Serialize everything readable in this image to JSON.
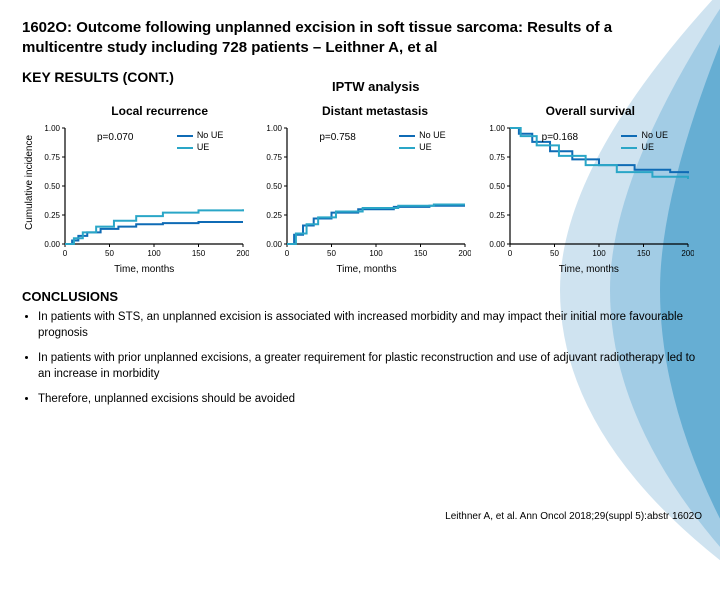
{
  "title": "1602O: Outcome following unplanned excision in soft tissue sarcoma: Results of a multicentre study including 728 patients – Leithner A, et al",
  "key_results": "KEY RESULTS (CONT.)",
  "iptw": "IPTW analysis",
  "yaxis": "Cumulative incidence",
  "xaxis": "Time, months",
  "conclusions_h": "CONCLUSIONS",
  "bullets": [
    "In patients with STS, an unplanned excision is associated with increased morbidity and may impact their initial more favourable prognosis",
    "In patients with prior unplanned excisions, a greater requirement for plastic reconstruction and use of adjuvant radiotherapy led to an increase in morbidity",
    "Therefore, unplanned excisions should be avoided"
  ],
  "citation": "Leithner A, et al. Ann Oncol 2018;29(suppl 5):abstr 1602O",
  "colors": {
    "noUE": "#0f6bb5",
    "UE": "#2aa6c7",
    "axis": "#000000",
    "swoosh1": "#cfe3f0",
    "swoosh2": "#9cc9e3",
    "swoosh3": "#5ca8d0"
  },
  "legend": {
    "noUE": "No UE",
    "UE": "UE"
  },
  "axis": {
    "yticks": [
      0.0,
      0.25,
      0.5,
      0.75,
      1.0
    ],
    "ylim": [
      0,
      1
    ],
    "xticks": [
      0,
      50,
      100,
      150,
      200
    ],
    "xlim": [
      0,
      200
    ],
    "tick_fontsize": 8
  },
  "charts": [
    {
      "title": "Local recurrence",
      "p": "p=0.070",
      "noUE": [
        [
          0,
          0.0
        ],
        [
          8,
          0.03
        ],
        [
          15,
          0.07
        ],
        [
          25,
          0.1
        ],
        [
          40,
          0.13
        ],
        [
          60,
          0.15
        ],
        [
          80,
          0.17
        ],
        [
          110,
          0.18
        ],
        [
          150,
          0.19
        ],
        [
          200,
          0.19
        ]
      ],
      "UE": [
        [
          0,
          0.0
        ],
        [
          10,
          0.05
        ],
        [
          20,
          0.1
        ],
        [
          35,
          0.15
        ],
        [
          55,
          0.2
        ],
        [
          80,
          0.24
        ],
        [
          110,
          0.27
        ],
        [
          150,
          0.29
        ],
        [
          200,
          0.3
        ]
      ]
    },
    {
      "title": "Distant metastasis",
      "p": "p=0.758",
      "noUE": [
        [
          0,
          0.0
        ],
        [
          8,
          0.08
        ],
        [
          18,
          0.16
        ],
        [
          30,
          0.22
        ],
        [
          50,
          0.27
        ],
        [
          80,
          0.3
        ],
        [
          120,
          0.32
        ],
        [
          160,
          0.33
        ],
        [
          200,
          0.33
        ]
      ],
      "UE": [
        [
          0,
          0.0
        ],
        [
          10,
          0.09
        ],
        [
          22,
          0.17
        ],
        [
          35,
          0.23
        ],
        [
          55,
          0.28
        ],
        [
          85,
          0.31
        ],
        [
          125,
          0.33
        ],
        [
          165,
          0.34
        ],
        [
          200,
          0.34
        ]
      ]
    },
    {
      "title": "Overall survival",
      "p": "p=0.168",
      "noUE": [
        [
          0,
          1.0
        ],
        [
          10,
          0.95
        ],
        [
          25,
          0.88
        ],
        [
          45,
          0.8
        ],
        [
          70,
          0.73
        ],
        [
          100,
          0.68
        ],
        [
          140,
          0.64
        ],
        [
          180,
          0.62
        ],
        [
          200,
          0.61
        ]
      ],
      "UE": [
        [
          0,
          1.0
        ],
        [
          12,
          0.93
        ],
        [
          30,
          0.85
        ],
        [
          55,
          0.76
        ],
        [
          85,
          0.68
        ],
        [
          120,
          0.62
        ],
        [
          160,
          0.58
        ],
        [
          200,
          0.56
        ]
      ]
    }
  ]
}
